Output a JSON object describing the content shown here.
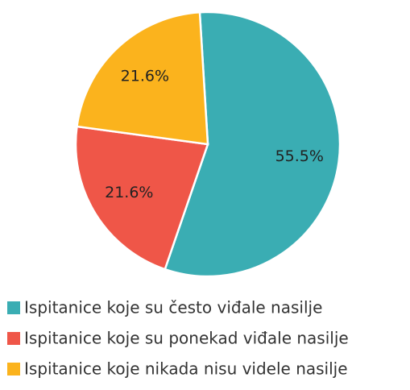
{
  "chart_data": {
    "type": "pie",
    "categories": [
      "Ispitanice koje su često viđale nasilje",
      "Ispitanice koje su ponekad viđale nasilje",
      "Ispitanice koje nikada nisu videle nasilje"
    ],
    "values": [
      55.5,
      21.6,
      21.6
    ],
    "value_labels": [
      "55.5%",
      "21.6%",
      "21.6%"
    ],
    "colors": [
      "#3aadb3",
      "#ef5648",
      "#fbb31d"
    ],
    "legend": "bottom"
  }
}
